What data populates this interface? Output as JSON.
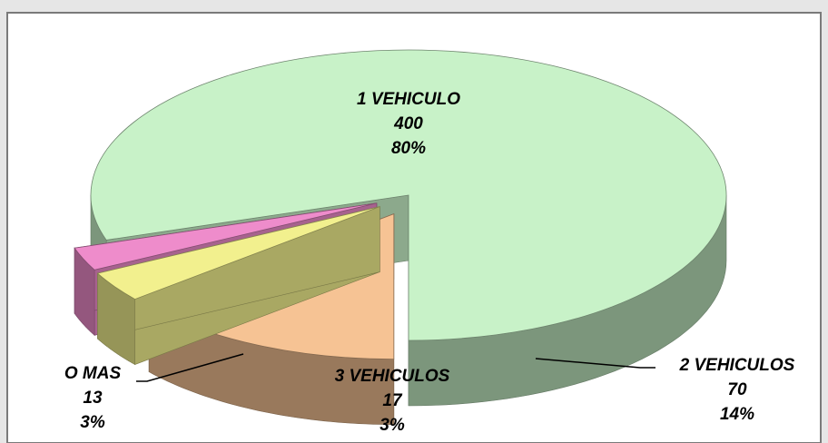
{
  "chart_data": {
    "type": "pie3d",
    "categories": [
      "1 VEHICULO",
      "2 VEHICULOS",
      "3 VEHICULOS",
      "O MAS"
    ],
    "values": [
      400,
      70,
      17,
      13
    ],
    "percent_labels": [
      "80%",
      "14%",
      "3%",
      "3%"
    ],
    "colors": [
      "#c8f2c8",
      "#f6c394",
      "#f2f08e",
      "#ee8ccb"
    ]
  }
}
